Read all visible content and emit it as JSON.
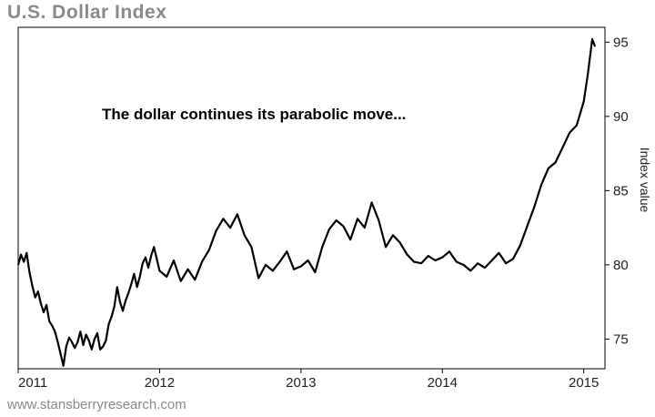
{
  "header": {
    "title": "U.S. Dollar Index"
  },
  "footer": {
    "source": "www.stansberryresearch.com"
  },
  "chart_data": {
    "type": "line",
    "title": "U.S. Dollar Index",
    "annotation": "The dollar continues its parabolic move...",
    "xlabel": "",
    "ylabel": "Index value",
    "xlim": [
      2011.0,
      2015.15
    ],
    "ylim": [
      73,
      96
    ],
    "x_ticks": [
      "2011",
      "2012",
      "2013",
      "2014",
      "2015"
    ],
    "y_ticks": [
      75,
      80,
      85,
      90,
      95
    ],
    "y_axis_side": "right",
    "grid": false,
    "line_color": "#000000",
    "series": [
      {
        "x": [
          2011.0,
          2011.02,
          2011.04,
          2011.06,
          2011.08,
          2011.1,
          2011.12,
          2011.14,
          2011.16,
          2011.18,
          2011.2,
          2011.22,
          2011.24,
          2011.26,
          2011.28,
          2011.3,
          2011.32,
          2011.34,
          2011.36,
          2011.38,
          2011.4,
          2011.42,
          2011.44,
          2011.46,
          2011.48,
          2011.5,
          2011.52,
          2011.54,
          2011.56,
          2011.58,
          2011.6,
          2011.62,
          2011.64,
          2011.66,
          2011.68,
          2011.7,
          2011.72,
          2011.74,
          2011.76,
          2011.78,
          2011.8,
          2011.82,
          2011.84,
          2011.86,
          2011.88,
          2011.9,
          2011.92,
          2011.94,
          2011.96,
          2011.98,
          2012.0,
          2012.05,
          2012.1,
          2012.15,
          2012.2,
          2012.25,
          2012.3,
          2012.35,
          2012.4,
          2012.45,
          2012.5,
          2012.55,
          2012.6,
          2012.65,
          2012.7,
          2012.75,
          2012.8,
          2012.85,
          2012.9,
          2012.95,
          2013.0,
          2013.05,
          2013.1,
          2013.15,
          2013.2,
          2013.25,
          2013.3,
          2013.35,
          2013.4,
          2013.45,
          2013.5,
          2013.55,
          2013.6,
          2013.65,
          2013.7,
          2013.75,
          2013.8,
          2013.85,
          2013.9,
          2013.95,
          2014.0,
          2014.05,
          2014.1,
          2014.15,
          2014.2,
          2014.25,
          2014.3,
          2014.35,
          2014.4,
          2014.45,
          2014.5,
          2014.55,
          2014.6,
          2014.65,
          2014.7,
          2014.75,
          2014.8,
          2014.85,
          2014.9,
          2014.95,
          2015.0,
          2015.03,
          2015.06,
          2015.08
        ],
        "y": [
          80.0,
          80.7,
          80.2,
          80.8,
          79.5,
          78.6,
          77.8,
          78.2,
          77.4,
          76.8,
          77.3,
          76.2,
          75.9,
          75.5,
          74.8,
          74.0,
          73.2,
          74.5,
          75.1,
          74.8,
          74.4,
          74.8,
          75.5,
          74.6,
          75.3,
          74.9,
          74.3,
          75.0,
          75.4,
          74.3,
          74.5,
          74.9,
          76.0,
          76.5,
          77.2,
          78.5,
          77.5,
          76.9,
          77.6,
          78.1,
          78.7,
          79.4,
          78.5,
          79.2,
          80.1,
          80.5,
          79.8,
          80.6,
          81.2,
          80.4,
          79.6,
          79.2,
          80.3,
          78.9,
          79.7,
          79.0,
          80.2,
          81.0,
          82.3,
          83.1,
          82.5,
          83.4,
          82.0,
          81.2,
          79.1,
          80.0,
          79.6,
          80.2,
          80.9,
          79.7,
          79.9,
          80.3,
          79.5,
          81.2,
          82.4,
          83.0,
          82.6,
          81.7,
          83.1,
          82.5,
          84.2,
          83.0,
          81.2,
          82.0,
          81.5,
          80.7,
          80.2,
          80.1,
          80.6,
          80.3,
          80.5,
          80.9,
          80.2,
          80.0,
          79.6,
          80.1,
          79.8,
          80.3,
          80.8,
          80.1,
          80.4,
          81.3,
          82.6,
          83.9,
          85.4,
          86.5,
          86.9,
          87.9,
          88.9,
          89.4,
          91.0,
          92.9,
          95.2,
          94.7
        ]
      }
    ]
  }
}
